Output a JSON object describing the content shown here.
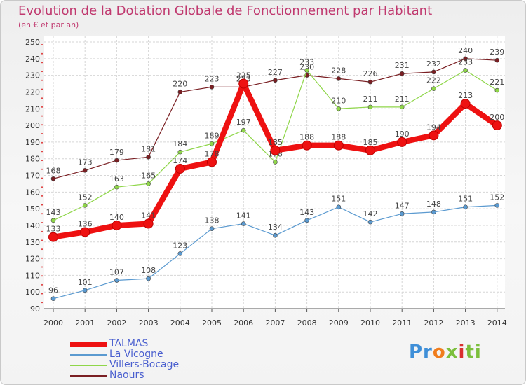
{
  "chart_data": {
    "type": "line",
    "title": "Evolution de la Dotation Globale de Fonctionnement par Habitant",
    "subtitle": "(en € et par an)",
    "xlabel": "",
    "ylabel": "",
    "ylim": [
      90,
      250
    ],
    "yticks": [
      90,
      100,
      110,
      120,
      130,
      140,
      150,
      160,
      170,
      180,
      190,
      200,
      210,
      220,
      230,
      240,
      250
    ],
    "categories": [
      "2000",
      "2001",
      "2002",
      "2003",
      "2004",
      "2005",
      "2006",
      "2007",
      "2008",
      "2009",
      "2010",
      "2011",
      "2012",
      "2013",
      "2014"
    ],
    "series": [
      {
        "name": "Naours",
        "color": "#7a1f23",
        "values": [
          168,
          173,
          179,
          181,
          220,
          223,
          223,
          227,
          230,
          228,
          226,
          231,
          232,
          240,
          239
        ]
      },
      {
        "name": "Villers-Bocage",
        "color": "#8fd649",
        "values": [
          143,
          152,
          163,
          165,
          184,
          189,
          197,
          178,
          233,
          210,
          211,
          211,
          222,
          233,
          221
        ]
      },
      {
        "name": "La Vicogne",
        "color": "#5b9ad0",
        "values": [
          96,
          101,
          107,
          108,
          123,
          138,
          141,
          134,
          143,
          151,
          142,
          147,
          148,
          151,
          152
        ]
      },
      {
        "name": "TALMAS",
        "color": "#ee1111",
        "values": [
          133,
          136,
          140,
          141,
          174,
          178,
          225,
          185,
          188,
          188,
          185,
          190,
          194,
          213,
          200
        ]
      }
    ],
    "legend": [
      "TALMAS",
      "La Vicogne",
      "Villers-Bocage",
      "Naours"
    ],
    "legend_position": "bottom-left",
    "grid": true
  },
  "logo": {
    "text": "Proxiti",
    "parts": [
      "Pr",
      "o",
      "x",
      "i",
      "ti"
    ]
  }
}
